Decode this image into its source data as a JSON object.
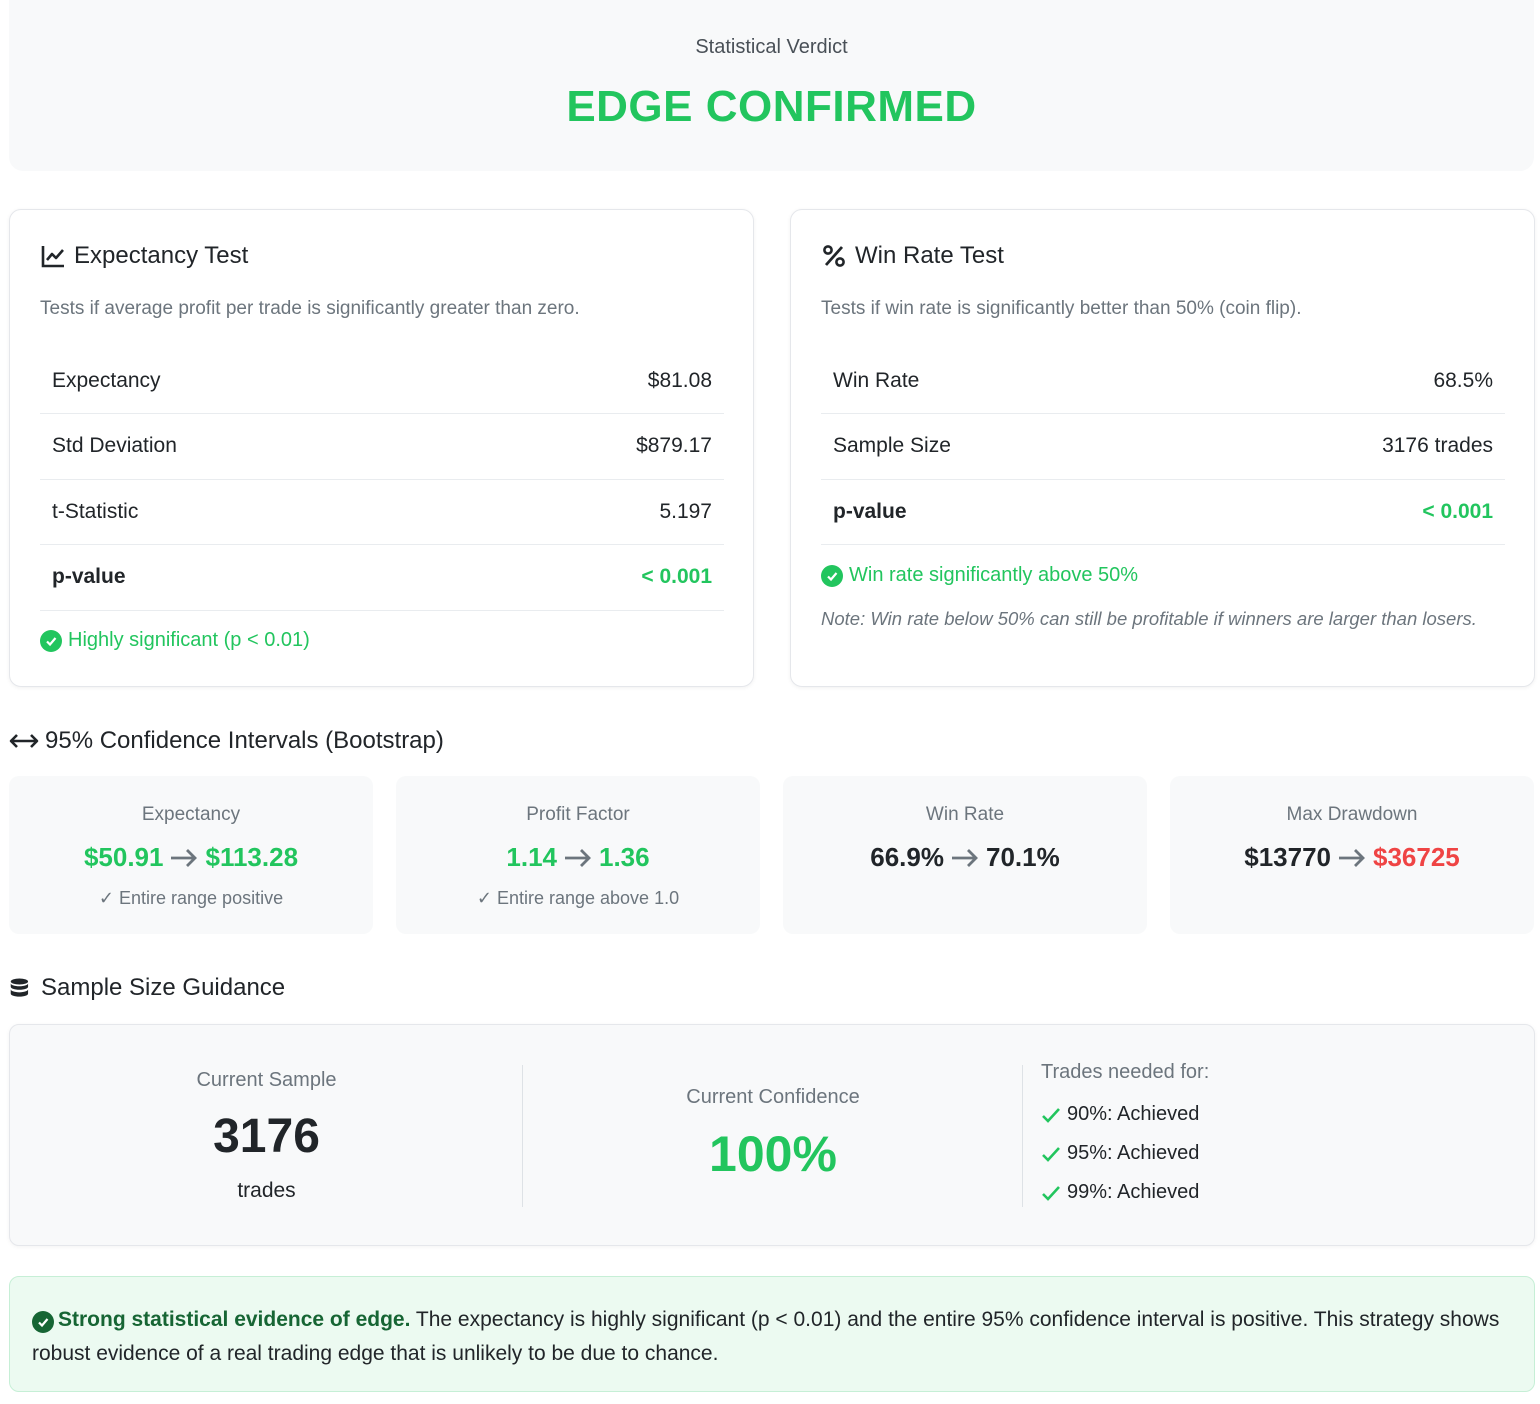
{
  "verdict": {
    "subtitle": "Statistical Verdict",
    "title": "EDGE CONFIRMED",
    "color": "#22c55e"
  },
  "expectancy_test": {
    "icon": "line-chart-icon",
    "title": "Expectancy Test",
    "description": "Tests if average profit per trade is significantly greater than zero.",
    "rows": [
      {
        "label": "Expectancy",
        "value": "$81.08"
      },
      {
        "label": "Std Deviation",
        "value": "$879.17"
      },
      {
        "label": "t-Statistic",
        "value": "5.197"
      },
      {
        "label": "p-value",
        "value": "< 0.001"
      }
    ],
    "significance": "Highly significant (p < 0.01)"
  },
  "win_rate_test": {
    "icon": "percent-icon",
    "title": "Win Rate Test",
    "description": "Tests if win rate is significantly better than 50% (coin flip).",
    "rows": [
      {
        "label": "Win Rate",
        "value": "68.5%"
      },
      {
        "label": "Sample Size",
        "value": "3176 trades"
      },
      {
        "label": "p-value",
        "value": "< 0.001"
      }
    ],
    "significance": "Win rate significantly above 50%",
    "note": "Note: Win rate below 50% can still be profitable if winners are larger than losers."
  },
  "confidence_intervals": {
    "title": "95% Confidence Intervals (Bootstrap)",
    "items": [
      {
        "label": "Expectancy",
        "low": "$50.91",
        "high": "$113.28",
        "footer": "Entire range positive"
      },
      {
        "label": "Profit Factor",
        "low": "1.14",
        "high": "1.36",
        "footer": "Entire range above 1.0"
      },
      {
        "label": "Win Rate",
        "low": "66.9%",
        "high": "70.1%",
        "footer": ""
      },
      {
        "label": "Max Drawdown",
        "low": "$13770",
        "high": "$36725",
        "footer": ""
      }
    ]
  },
  "sample_size": {
    "title": "Sample Size Guidance",
    "current_sample_label": "Current Sample",
    "current_sample_value": "3176",
    "current_sample_unit": "trades",
    "current_confidence_label": "Current Confidence",
    "current_confidence_value": "100%",
    "needed_label": "Trades needed for:",
    "needed": [
      "90%: Achieved",
      "95%: Achieved",
      "99%: Achieved"
    ]
  },
  "summary": {
    "strong": "Strong statistical evidence of edge.",
    "text": " The expectancy is highly significant (p < 0.01) and the entire 95% confidence interval is positive. This strategy shows robust evidence of a real trading edge that is unlikely to be due to chance."
  }
}
